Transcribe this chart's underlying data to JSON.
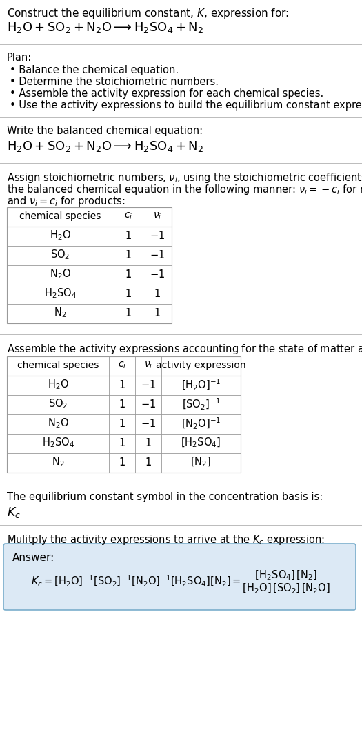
{
  "title_line1": "Construct the equilibrium constant, $K$, expression for:",
  "title_line2": "$\\mathrm{H_2O + SO_2 + N_2O} \\longrightarrow \\mathrm{H_2SO_4 + N_2}$",
  "plan_header": "Plan:",
  "plan_items": [
    "• Balance the chemical equation.",
    "• Determine the stoichiometric numbers.",
    "• Assemble the activity expression for each chemical species.",
    "• Use the activity expressions to build the equilibrium constant expression."
  ],
  "balanced_eq_header": "Write the balanced chemical equation:",
  "balanced_eq": "$\\mathrm{H_2O + SO_2 + N_2O} \\longrightarrow \\mathrm{H_2SO_4 + N_2}$",
  "stoich_header_1": "Assign stoichiometric numbers, $\\nu_i$, using the stoichiometric coefficients, $c_i$, from",
  "stoich_header_2": "the balanced chemical equation in the following manner: $\\nu_i = -c_i$ for reactants",
  "stoich_header_3": "and $\\nu_i = c_i$ for products:",
  "table1_col_header": [
    "chemical species",
    "$c_i$",
    "$\\nu_i$"
  ],
  "table1_rows": [
    [
      "$\\mathrm{H_2O}$",
      "1",
      "$-1$"
    ],
    [
      "$\\mathrm{SO_2}$",
      "1",
      "$-1$"
    ],
    [
      "$\\mathrm{N_2O}$",
      "1",
      "$-1$"
    ],
    [
      "$\\mathrm{H_2SO_4}$",
      "1",
      "1"
    ],
    [
      "$\\mathrm{N_2}$",
      "1",
      "1"
    ]
  ],
  "activity_header": "Assemble the activity expressions accounting for the state of matter and $\\nu_i$:",
  "table2_col_header": [
    "chemical species",
    "$c_i$",
    "$\\nu_i$",
    "activity expression"
  ],
  "table2_rows": [
    [
      "$\\mathrm{H_2O}$",
      "1",
      "$-1$",
      "$[\\mathrm{H_2O}]^{-1}$"
    ],
    [
      "$\\mathrm{SO_2}$",
      "1",
      "$-1$",
      "$[\\mathrm{SO_2}]^{-1}$"
    ],
    [
      "$\\mathrm{N_2O}$",
      "1",
      "$-1$",
      "$[\\mathrm{N_2O}]^{-1}$"
    ],
    [
      "$\\mathrm{H_2SO_4}$",
      "1",
      "1",
      "$[\\mathrm{H_2SO_4}]$"
    ],
    [
      "$\\mathrm{N_2}$",
      "1",
      "1",
      "$[\\mathrm{N_2}]$"
    ]
  ],
  "kc_header": "The equilibrium constant symbol in the concentration basis is:",
  "kc_symbol": "$K_c$",
  "multiply_header": "Mulitply the activity expressions to arrive at the $K_c$ expression:",
  "answer_label": "Answer:",
  "answer_bg": "#dce9f5",
  "answer_border": "#7aaecc",
  "bg_color": "#ffffff",
  "sep_color": "#bbbbbb",
  "table_border": "#999999"
}
